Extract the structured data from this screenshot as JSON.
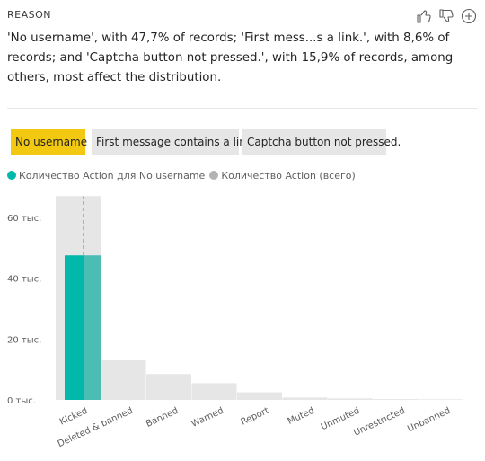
{
  "header": {
    "label": "REASON"
  },
  "toolbar": {
    "icons": [
      "thumbs-up-icon",
      "thumbs-down-icon",
      "plus-circle-icon"
    ]
  },
  "summary": "'No username', with 47,7% of records; 'First mess...s a link.', with 8,6% of records; and 'Captcha button not pressed.', with 15,9% of records, among others, most affect the distribution.",
  "chips": [
    {
      "label": "No username",
      "active": true
    },
    {
      "label": "First message contains a link.",
      "active": false
    },
    {
      "label": "Captcha button not pressed.",
      "active": false
    }
  ],
  "legend": [
    {
      "label": "Количество Action для No username",
      "color": "#01b8aa"
    },
    {
      "label": "Количество Action (всего)",
      "color": "#b3b3b3"
    }
  ],
  "chart_data": {
    "type": "bar",
    "categories": [
      "Kicked",
      "Deleted & banned",
      "Banned",
      "Warned",
      "Report",
      "Muted",
      "Unmuted",
      "Unrestricted",
      "Unbanned"
    ],
    "series": [
      {
        "name": "Количество Action для No username",
        "values": [
          47500,
          null,
          null,
          null,
          null,
          null,
          null,
          null,
          null
        ],
        "color": "#01b8aa"
      },
      {
        "name": "Количество Action (всего)",
        "values": [
          67000,
          13000,
          8500,
          5500,
          2500,
          800,
          500,
          300,
          200
        ],
        "color": "#e6e6e6"
      }
    ],
    "yticks": [
      {
        "value": 0,
        "label": "0 тыс."
      },
      {
        "value": 20000,
        "label": "20 тыс."
      },
      {
        "value": 40000,
        "label": "40 тыс."
      },
      {
        "value": 60000,
        "label": "60 тыс."
      }
    ],
    "ylim": [
      0,
      70000
    ],
    "grid": false,
    "legend_position": "top-left"
  }
}
